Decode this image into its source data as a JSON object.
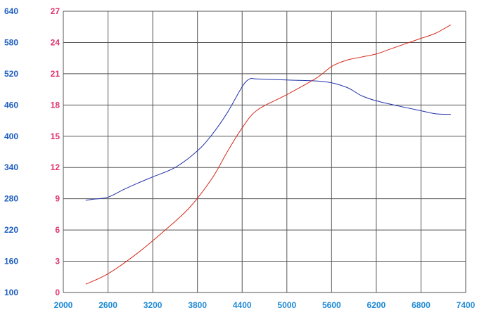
{
  "colors": {
    "background": "#ffffff",
    "plot_background": "#ffffff",
    "grid": "#555555",
    "left_axis_labels": "#1f5fbf",
    "right_axis_labels": "#e0306a",
    "x_axis_labels": "#1f8ad6",
    "series_left": "#2233aa",
    "series_right": "#d62a1c"
  },
  "chart_data": {
    "type": "line",
    "title": "",
    "xlabel": "",
    "ylabel": "",
    "grid": true,
    "legend": "none",
    "xlim": [
      2000,
      7400
    ],
    "x_ticks": [
      2000,
      2600,
      3200,
      3800,
      4400,
      5000,
      5600,
      6200,
      6800,
      7400
    ],
    "x_tick_labels": [
      "2000",
      "2600",
      "3200",
      "3800",
      "4400",
      "5000",
      "5600",
      "6200",
      "6800",
      "7400"
    ],
    "ylim_left": [
      100,
      640
    ],
    "y_ticks_left": [
      100,
      160,
      220,
      280,
      340,
      400,
      460,
      520,
      580,
      640
    ],
    "y_tick_labels_left": [
      "100",
      "160",
      "220",
      "280",
      "340",
      "400",
      "460",
      "520",
      "580",
      "640"
    ],
    "ylim_right": [
      0,
      27
    ],
    "y_ticks_right": [
      0,
      3,
      6,
      9,
      12,
      15,
      18,
      21,
      24,
      27
    ],
    "y_tick_labels_right": [
      "0",
      "3",
      "6",
      "9",
      "12",
      "15",
      "18",
      "21",
      "24",
      "27"
    ],
    "series": [
      {
        "axis": "left",
        "color": "#2233aa",
        "x": [
          2300,
          2400,
          2600,
          2800,
          3000,
          3200,
          3500,
          3800,
          4000,
          4200,
          4400,
          4500,
          4600,
          5000,
          5500,
          5800,
          6000,
          6200,
          6500,
          6800,
          7000,
          7200
        ],
        "y": [
          277,
          279,
          283,
          297,
          310,
          322,
          340,
          372,
          404,
          445,
          495,
          510,
          510,
          508,
          505,
          494,
          478,
          468,
          458,
          449,
          443,
          442
        ]
      },
      {
        "axis": "right",
        "color": "#d62a1c",
        "x": [
          2300,
          2600,
          3000,
          3400,
          3700,
          4000,
          4200,
          4400,
          4600,
          5000,
          5400,
          5600,
          5800,
          6000,
          6200,
          6400,
          6600,
          6800,
          7000,
          7200
        ],
        "y": [
          0.8,
          1.8,
          3.8,
          6.2,
          8.2,
          11.0,
          13.5,
          15.8,
          17.5,
          19.0,
          20.6,
          21.7,
          22.3,
          22.6,
          22.9,
          23.4,
          23.9,
          24.4,
          24.9,
          25.7
        ]
      }
    ]
  }
}
